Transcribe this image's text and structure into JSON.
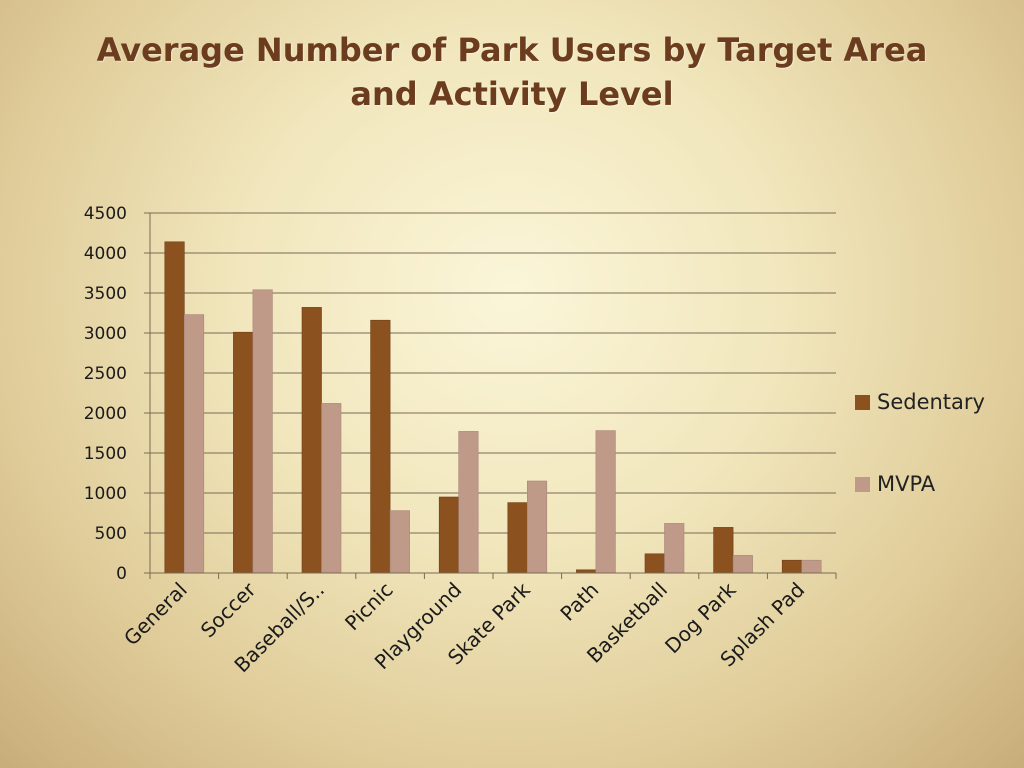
{
  "title_lines": [
    "Average Number of Park Users by Target Area",
    "and Activity Level"
  ],
  "colors": {
    "sedentary": "#8b5220",
    "mvpa": "#c09a89",
    "grid": "#7a6a55",
    "text": "#1a1a1a"
  },
  "chart_data": {
    "type": "bar",
    "title": "Average Number of Park Users by Target Area and Activity Level",
    "xlabel": "",
    "ylabel": "",
    "ylim": [
      0,
      4500
    ],
    "yticks": [
      0,
      500,
      1000,
      1500,
      2000,
      2500,
      3000,
      3500,
      4000,
      4500
    ],
    "grid": true,
    "legend": "right",
    "categories": [
      "General",
      "Soccer",
      "Baseball/S..",
      "Picnic",
      "Playground",
      "Skate Park",
      "Path",
      "Basketball",
      "Dog Park",
      "Splash Pad"
    ],
    "series": [
      {
        "name": "Sedentary",
        "values": [
          4140,
          3010,
          3320,
          3160,
          950,
          880,
          40,
          240,
          570,
          160
        ]
      },
      {
        "name": "MVPA",
        "values": [
          3230,
          3540,
          2120,
          780,
          1770,
          1150,
          1780,
          620,
          220,
          160
        ]
      }
    ]
  }
}
